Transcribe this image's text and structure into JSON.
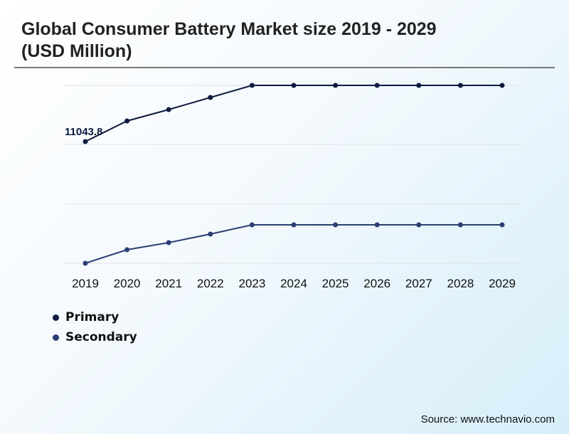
{
  "chart_data": {
    "type": "line",
    "title": "Global Consumer Battery Market size 2019 - 2029 (USD Million)",
    "categories": [
      "2019",
      "2020",
      "2021",
      "2022",
      "2023",
      "2024",
      "2025",
      "2026",
      "2027",
      "2028",
      "2029"
    ],
    "series": [
      {
        "name": "Primary",
        "color": "#0d1b3e",
        "values": [
          11043.8,
          12917,
          13950,
          15048,
          16146,
          16146,
          16146,
          16146,
          16146,
          16146,
          16146
        ]
      },
      {
        "name": "Secondary",
        "color": "#2b3f73",
        "values": [
          0,
          1227,
          1873,
          2648,
          3488,
          3488,
          3488,
          3488,
          3488,
          3488,
          3488
        ]
      }
    ],
    "data_labels": [
      {
        "series": "Primary",
        "category": "2019",
        "text": "11043.8"
      }
    ],
    "grid": true,
    "legend": "bottom-left"
  },
  "source": "Source: www.technavio.com"
}
